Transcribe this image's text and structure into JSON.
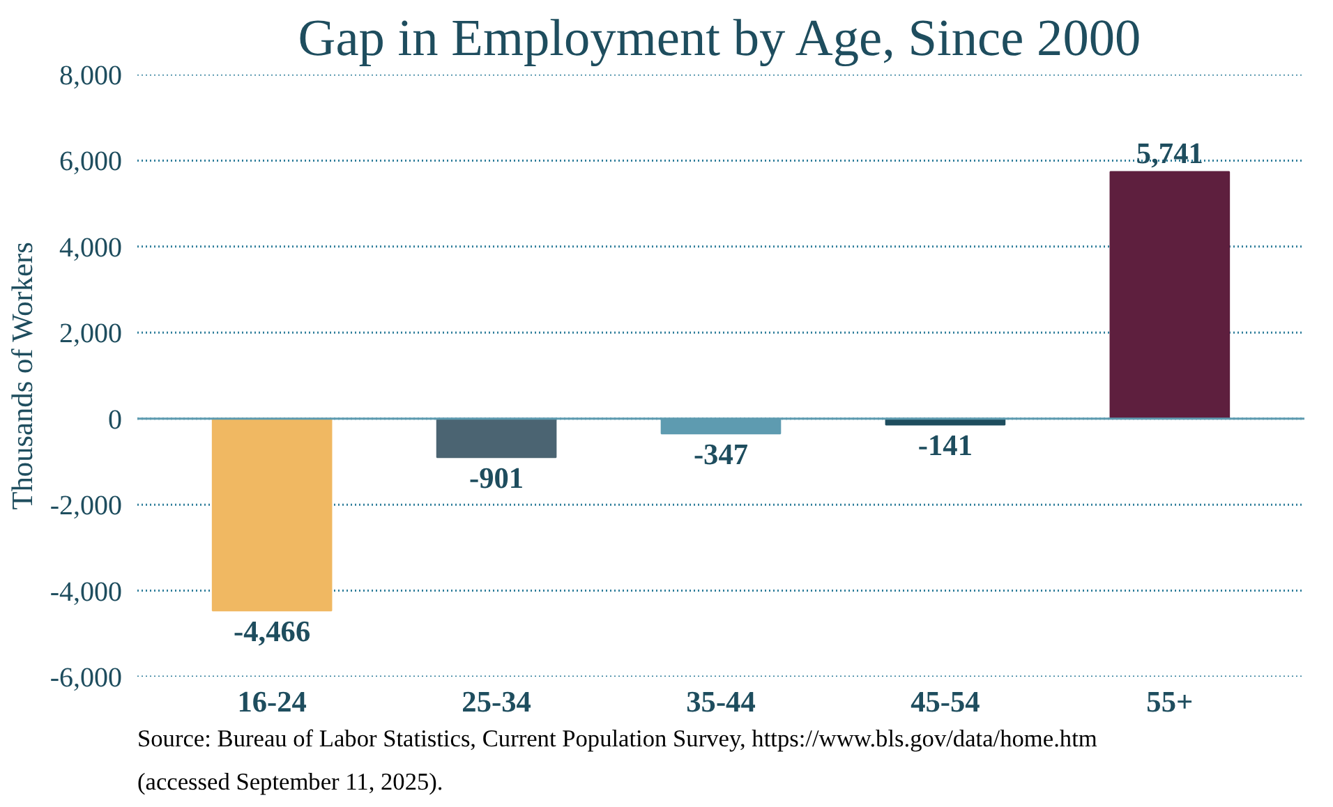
{
  "chart_data": {
    "type": "bar",
    "title": "Gap in Employment by Age, Since 2000",
    "ylabel": "Thousands of Workers",
    "categories": [
      "16-24",
      "25-34",
      "35-44",
      "45-54",
      "55+"
    ],
    "values": [
      -4466,
      -901,
      -347,
      -141,
      5741
    ],
    "colors": [
      "#f0b862",
      "#4b6472",
      "#5e9bb0",
      "#1e4d5e",
      "#5e1f3e"
    ],
    "value_labels": [
      "-4,466",
      "-901",
      "-347",
      "-141",
      "5,741"
    ],
    "ylim": [
      -6000,
      8000
    ],
    "ref_lines": [
      {
        "axis": "y",
        "value": 0,
        "color": "#5e9bb0"
      }
    ],
    "yticks": [
      {
        "value": -6000,
        "label": "-6,000"
      },
      {
        "value": -4000,
        "label": "-4,000"
      },
      {
        "value": -2000,
        "label": "-2,000"
      },
      0,
      {
        "value": 2000,
        "label": "2,000"
      },
      {
        "value": 4000,
        "label": "4,000"
      },
      {
        "value": 6000,
        "label": "6,000"
      },
      {
        "value": 8000,
        "label": "8,000"
      }
    ],
    "grid": "y",
    "annotations": [
      "Source: Bureau of Labor Statistics, Current Population Survey, https://www.bls.gov/data/home.htm",
      "(accessed September 11, 2025)."
    ]
  }
}
